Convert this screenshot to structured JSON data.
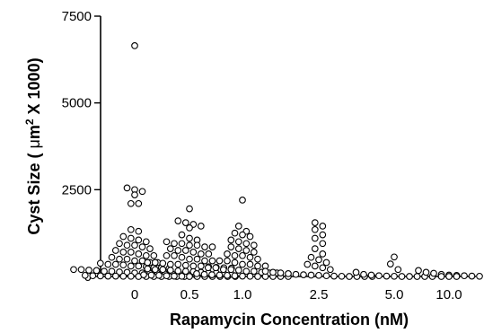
{
  "chart_data": {
    "type": "scatter",
    "xlabel": "Rapamycin Concentration (nM)",
    "ylabel": {
      "pre": "Cyst Size ( ",
      "mu": "μ",
      "unit": "m",
      "sup": "2",
      "post": " X 1000)"
    },
    "ylim": [
      0,
      7500
    ],
    "yticks": [
      "0",
      "2500",
      "5000",
      "7500"
    ],
    "ytick_values": [
      0,
      2500,
      5000,
      7500
    ],
    "categories": [
      "0",
      "0.5",
      "1.0",
      "2.5",
      "5.0",
      "10.0"
    ],
    "grid": false,
    "series": [
      {
        "category": "0",
        "values": [
          6650,
          2550,
          2500,
          2450,
          2350,
          2100,
          2100,
          1350,
          1300,
          1150,
          1100,
          1050,
          1000,
          950,
          900,
          900,
          850,
          800,
          750,
          700,
          700,
          650,
          600,
          600,
          550,
          500,
          500,
          450,
          450,
          400,
          400,
          380,
          350,
          350,
          330,
          300,
          300,
          280,
          250,
          250,
          230,
          200,
          200,
          180,
          170,
          150,
          150,
          130,
          120,
          100,
          100,
          90,
          80,
          70,
          60,
          50,
          50,
          40,
          30,
          20,
          15,
          10,
          10,
          5,
          5,
          0,
          0,
          0,
          0,
          0,
          0,
          0
        ]
      },
      {
        "category": "0.5",
        "values": [
          1950,
          1600,
          1550,
          1500,
          1450,
          1400,
          1200,
          1100,
          1050,
          1000,
          950,
          950,
          900,
          900,
          850,
          850,
          800,
          750,
          750,
          700,
          650,
          650,
          600,
          600,
          550,
          500,
          500,
          450,
          450,
          400,
          400,
          380,
          350,
          350,
          320,
          300,
          300,
          280,
          260,
          250,
          240,
          220,
          200,
          200,
          180,
          160,
          150,
          140,
          120,
          100,
          100,
          80,
          60,
          50,
          40,
          30,
          20,
          10,
          5,
          0,
          0,
          0,
          0,
          0,
          0,
          0
        ]
      },
      {
        "category": "1.0",
        "values": [
          2200,
          1450,
          1300,
          1250,
          1200,
          1150,
          1050,
          1000,
          950,
          900,
          850,
          800,
          750,
          700,
          650,
          600,
          600,
          550,
          500,
          450,
          450,
          400,
          350,
          350,
          300,
          300,
          250,
          250,
          200,
          200,
          180,
          150,
          150,
          120,
          100,
          100,
          80,
          60,
          50,
          40,
          30,
          20,
          10,
          5,
          0,
          0,
          0,
          0,
          0
        ]
      },
      {
        "category": "2.5",
        "values": [
          1550,
          1450,
          1350,
          1200,
          1100,
          950,
          800,
          650,
          550,
          480,
          400,
          350,
          300,
          250,
          200,
          150,
          120,
          100,
          80,
          60,
          50,
          40,
          30,
          20,
          10,
          5,
          0,
          0,
          0,
          0
        ]
      },
      {
        "category": "5.0",
        "values": [
          560,
          360,
          200,
          120,
          60,
          40,
          20,
          10,
          5,
          0,
          0,
          0,
          0,
          0
        ]
      },
      {
        "category": "10.0",
        "values": [
          170,
          120,
          90,
          60,
          40,
          30,
          20,
          10,
          5,
          0,
          0,
          0
        ]
      }
    ]
  }
}
